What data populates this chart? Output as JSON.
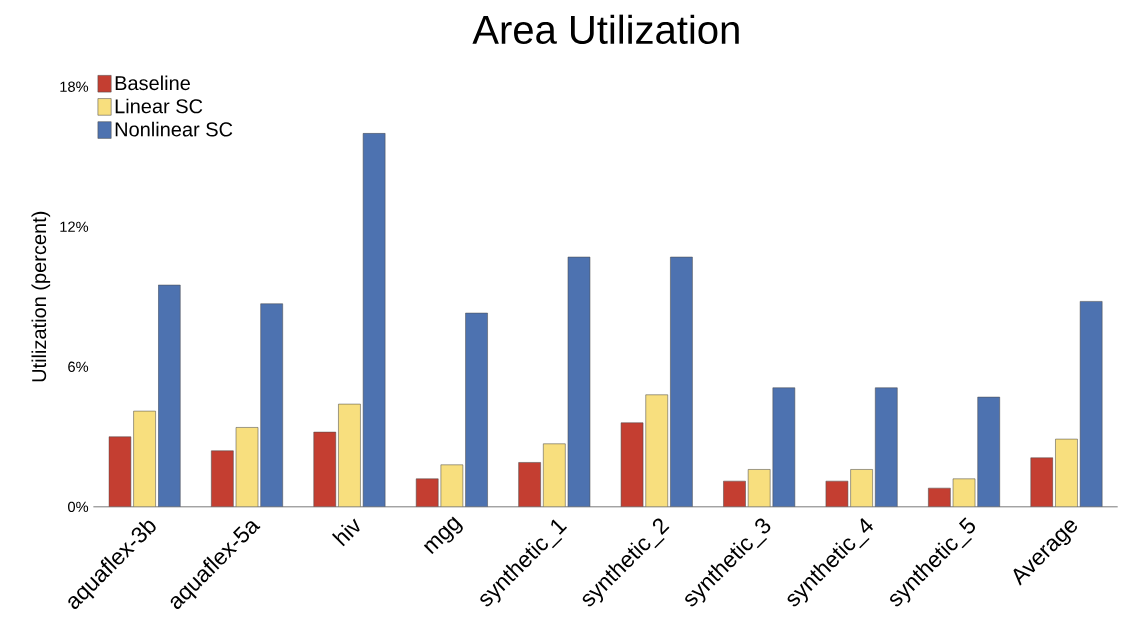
{
  "chart_data": {
    "type": "bar",
    "title": "Area Utilization",
    "ylabel": "Utilization (percent)",
    "categories": [
      "aquaflex-3b",
      "aquaflex-5a",
      "hiv",
      "mgg",
      "synthetic_1",
      "synthetic_2",
      "synthetic_3",
      "synthetic_4",
      "synthetic_5",
      "Average"
    ],
    "series": [
      {
        "name": "Baseline",
        "color": "#c43e31",
        "values": [
          3.0,
          2.4,
          3.2,
          1.2,
          1.9,
          3.6,
          1.1,
          1.1,
          0.8,
          2.1
        ]
      },
      {
        "name": "Linear SC",
        "color": "#f8df7e",
        "values": [
          4.1,
          3.4,
          4.4,
          1.8,
          2.7,
          4.8,
          1.6,
          1.6,
          1.2,
          2.9
        ]
      },
      {
        "name": "Nonlinear SC",
        "color": "#4d72b0",
        "values": [
          9.5,
          8.7,
          16.0,
          8.3,
          10.7,
          10.7,
          5.1,
          5.1,
          4.7,
          8.8
        ]
      }
    ],
    "ylim": [
      0,
      18
    ],
    "yticks": [
      {
        "value": 0,
        "label": "0%"
      },
      {
        "value": 6,
        "label": "6%"
      },
      {
        "value": 12,
        "label": "12%"
      },
      {
        "value": 18,
        "label": "18%"
      }
    ],
    "legend": "top left",
    "grid": false
  }
}
